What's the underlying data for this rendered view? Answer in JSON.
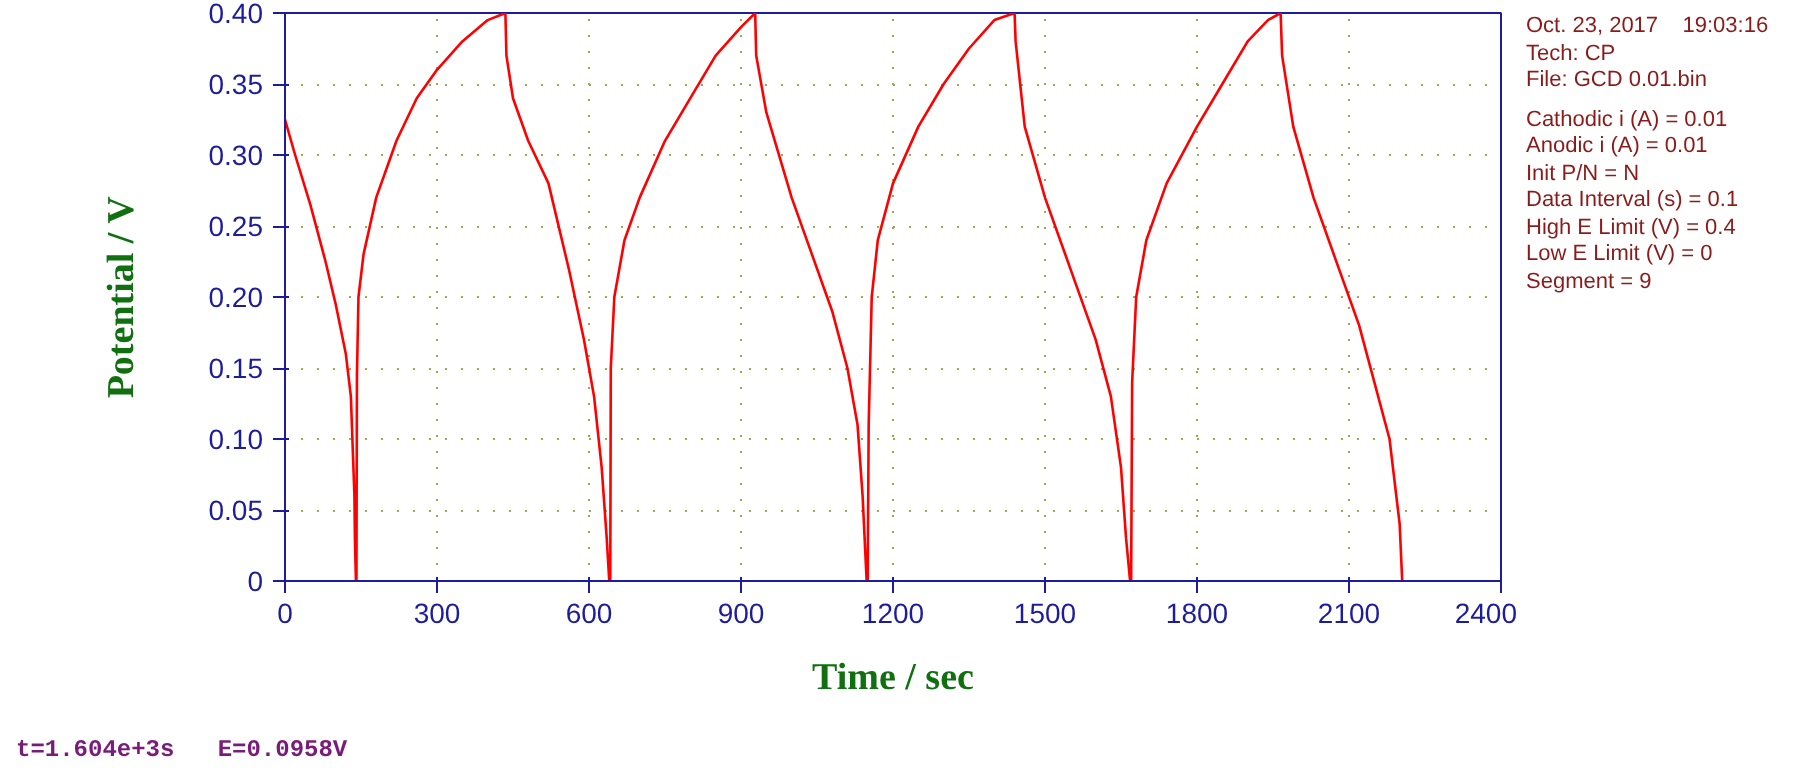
{
  "chart_data": {
    "type": "line",
    "xlabel": "Time / sec",
    "ylabel": "Potential / V",
    "annotations": [
      "Oct. 23, 2017    19:03:16",
      "Tech: CP",
      "File: GCD 0.01.bin",
      "Cathodic i (A) = 0.01",
      "Anodic i (A) = 0.01",
      "Init P/N = N",
      "Data Interval (s) = 0.1",
      "High E Limit (V) = 0.4",
      "Low E Limit (V) = 0",
      "Segment = 9",
      "t=1.604e+3s   E=0.0958V"
    ],
    "series": [
      {
        "color": "#ff0000",
        "x": [
          0,
          20,
          50,
          80,
          100,
          120,
          130,
          137,
          138,
          140,
          141,
          142,
          145,
          155,
          180,
          220,
          260,
          300,
          350,
          400,
          435,
          437,
          450,
          480,
          520,
          560,
          590,
          610,
          625,
          635,
          640,
          642,
          643,
          650,
          670,
          700,
          750,
          800,
          850,
          900,
          928,
          930,
          950,
          1000,
          1040,
          1080,
          1110,
          1130,
          1140,
          1148,
          1150,
          1152,
          1158,
          1170,
          1200,
          1250,
          1300,
          1350,
          1400,
          1440,
          1442,
          1460,
          1500,
          1550,
          1600,
          1630,
          1650,
          1660,
          1668,
          1670,
          1672,
          1680,
          1700,
          1740,
          1800,
          1850,
          1900,
          1940,
          1965,
          1968,
          1990,
          2030,
          2080,
          2120,
          2150,
          2180,
          2200,
          2205
        ],
        "values": [
          0.325,
          0.3,
          0.265,
          0.225,
          0.195,
          0.16,
          0.13,
          0.06,
          0.03,
          0.0,
          0.0,
          0.145,
          0.2,
          0.23,
          0.27,
          0.31,
          0.34,
          0.36,
          0.38,
          0.395,
          0.4,
          0.37,
          0.34,
          0.31,
          0.28,
          0.22,
          0.17,
          0.13,
          0.08,
          0.03,
          0.0,
          0.0,
          0.15,
          0.2,
          0.24,
          0.27,
          0.31,
          0.34,
          0.37,
          0.39,
          0.4,
          0.37,
          0.33,
          0.27,
          0.23,
          0.19,
          0.15,
          0.11,
          0.06,
          0.0,
          0.0,
          0.11,
          0.2,
          0.24,
          0.28,
          0.32,
          0.35,
          0.375,
          0.395,
          0.4,
          0.38,
          0.32,
          0.27,
          0.22,
          0.17,
          0.13,
          0.08,
          0.03,
          0.0,
          0.0,
          0.14,
          0.2,
          0.24,
          0.28,
          0.32,
          0.35,
          0.38,
          0.395,
          0.4,
          0.37,
          0.32,
          0.27,
          0.22,
          0.18,
          0.14,
          0.1,
          0.04,
          0.0
        ]
      }
    ],
    "xlim": [
      0,
      2400
    ],
    "xticks": [
      0,
      300,
      600,
      900,
      1200,
      1500,
      1800,
      2100,
      2400
    ],
    "ylim": [
      0,
      0.4
    ],
    "yticks": [
      0,
      0.05,
      {
        "value": 0.1,
        "label": "0.10"
      },
      0.15,
      {
        "value": 0.2,
        "label": "0.20"
      },
      0.25,
      {
        "value": 0.3,
        "label": "0.30"
      },
      0.35,
      {
        "value": 0.4,
        "label": "0.40"
      }
    ],
    "grid": true,
    "marker": "none",
    "line_style": "solid"
  }
}
